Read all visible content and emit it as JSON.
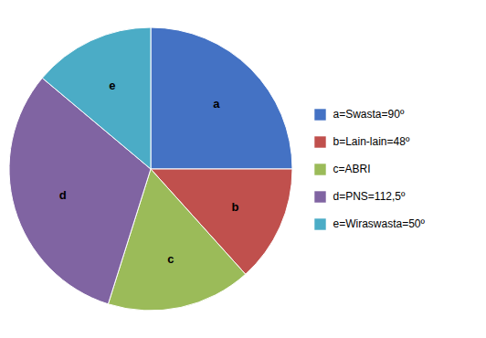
{
  "chart_data": {
    "type": "pie",
    "categories": [
      "a",
      "b",
      "c",
      "d",
      "e"
    ],
    "values": [
      90,
      48,
      59.5,
      112.5,
      50
    ],
    "colors": [
      "#4472C4",
      "#C0504D",
      "#9BBB59",
      "#8064A2",
      "#4BACC6"
    ],
    "legend_entries": [
      "a=Swasta=90º",
      "b=Lain-lain=48º",
      "c=ABRI",
      "d=PNS=112,5º",
      "e=Wiraswasta=50º"
    ],
    "legend": "right",
    "tick_labels": false
  }
}
